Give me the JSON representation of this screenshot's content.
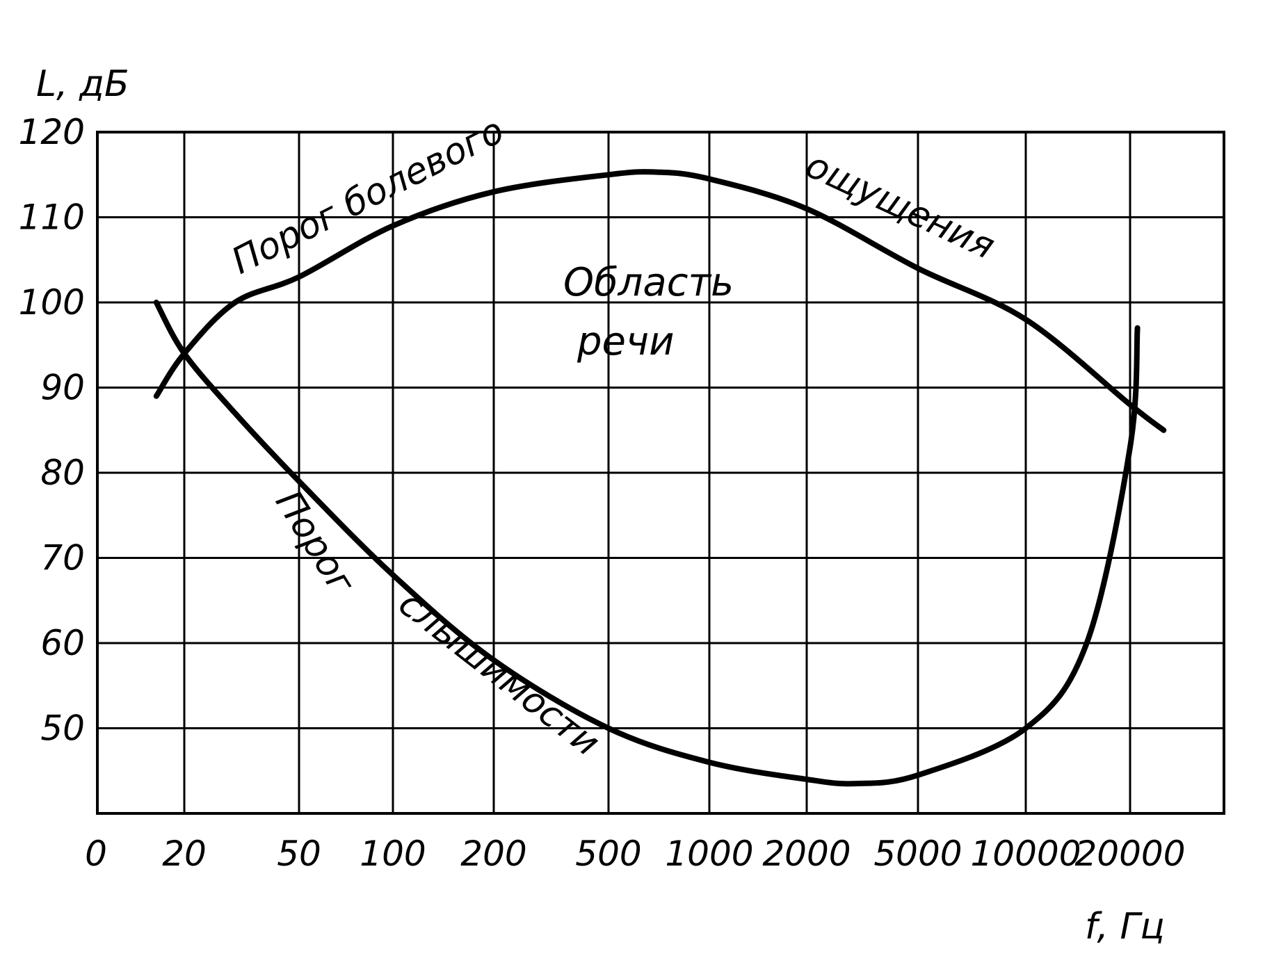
{
  "chart_data": {
    "type": "line",
    "xlabel": "f, Гц",
    "ylabel": "L, дБ",
    "x_ticks": [
      "0",
      "20",
      "50",
      "100",
      "200",
      "500",
      "1000",
      "2000",
      "5000",
      "10000",
      "20000"
    ],
    "y_ticks": [
      "50",
      "60",
      "70",
      "80",
      "90",
      "100",
      "110",
      "120"
    ],
    "ylim": [
      40,
      120
    ],
    "x_scale": "log (uneven printed ticks)",
    "grid": true,
    "series": [
      {
        "name": "Порог болевого ощущения",
        "x": [
          16,
          20,
          30,
          50,
          100,
          200,
          500,
          700,
          1000,
          2000,
          5000,
          10000,
          20000,
          25000
        ],
        "y": [
          89,
          94,
          100,
          103,
          109,
          113,
          115,
          115.3,
          114.5,
          111,
          104,
          98,
          88,
          85
        ]
      },
      {
        "name": "Порог слышимости",
        "x": [
          16,
          20,
          30,
          50,
          100,
          200,
          500,
          1000,
          2000,
          3000,
          5000,
          10000,
          15000,
          20000,
          21000
        ],
        "y": [
          100,
          94,
          87,
          79,
          68,
          58,
          50,
          46,
          44,
          43.5,
          44.5,
          50,
          60,
          83,
          97
        ]
      }
    ],
    "annotations": {
      "region": [
        "Область",
        "речи"
      ],
      "pain_label_1": "Порог болевого",
      "pain_label_2": "ощущения",
      "hearing_label_1": "Порог",
      "hearing_label_2": "слышимости"
    }
  }
}
